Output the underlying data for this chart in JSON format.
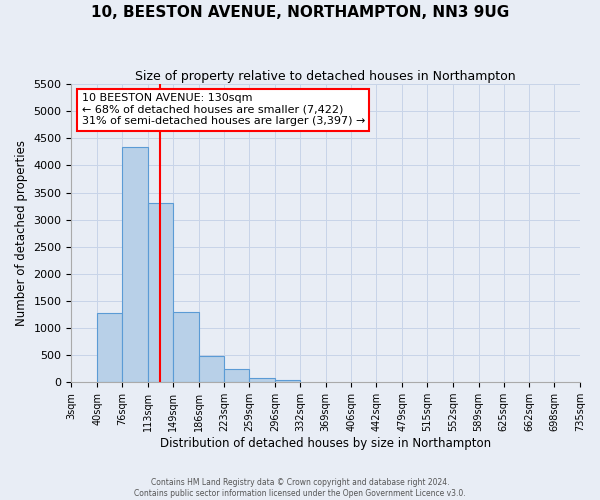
{
  "title": "10, BEESTON AVENUE, NORTHAMPTON, NN3 9UG",
  "subtitle": "Size of property relative to detached houses in Northampton",
  "xlabel": "Distribution of detached houses by size in Northampton",
  "ylabel": "Number of detached properties",
  "bin_labels": [
    "3sqm",
    "40sqm",
    "76sqm",
    "113sqm",
    "149sqm",
    "186sqm",
    "223sqm",
    "259sqm",
    "296sqm",
    "332sqm",
    "369sqm",
    "406sqm",
    "442sqm",
    "479sqm",
    "515sqm",
    "552sqm",
    "589sqm",
    "625sqm",
    "662sqm",
    "698sqm",
    "735sqm"
  ],
  "bin_values": [
    0,
    1270,
    4340,
    3300,
    1290,
    480,
    240,
    75,
    50,
    0,
    0,
    0,
    0,
    0,
    0,
    0,
    0,
    0,
    0,
    0
  ],
  "bar_color": "#b8d0e8",
  "bar_edge_color": "#5b9bd5",
  "property_line_x": 130,
  "property_line_color": "red",
  "annotation_title": "10 BEESTON AVENUE: 130sqm",
  "annotation_line1": "← 68% of detached houses are smaller (7,422)",
  "annotation_line2": "31% of semi-detached houses are larger (3,397) →",
  "annotation_box_color": "white",
  "annotation_box_edge_color": "red",
  "ylim": [
    0,
    5500
  ],
  "yticks": [
    0,
    500,
    1000,
    1500,
    2000,
    2500,
    3000,
    3500,
    4000,
    4500,
    5000,
    5500
  ],
  "grid_color": "#c8d4e8",
  "background_color": "#e8edf5",
  "footer_line1": "Contains HM Land Registry data © Crown copyright and database right 2024.",
  "footer_line2": "Contains public sector information licensed under the Open Government Licence v3.0."
}
